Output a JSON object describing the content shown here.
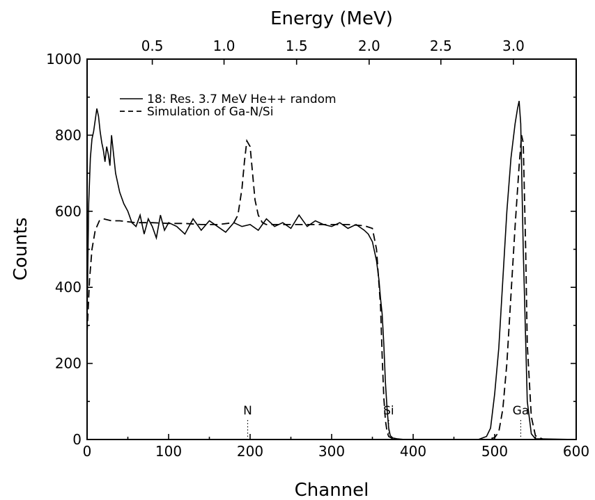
{
  "chart_data": {
    "type": "line",
    "xlabel": "Channel",
    "ylabel": "Counts",
    "x2label": "Energy (MeV)",
    "xlim": [
      0,
      600
    ],
    "ylim": [
      0,
      1000
    ],
    "xticks": [
      0,
      100,
      200,
      300,
      400,
      500,
      600
    ],
    "yticks": [
      0,
      200,
      400,
      600,
      800,
      1000
    ],
    "x2ticks": [
      {
        "label": "0.5",
        "channel": 80
      },
      {
        "label": "1.0",
        "channel": 168
      },
      {
        "label": "1.5",
        "channel": 257
      },
      {
        "label": "2.0",
        "channel": 346
      },
      {
        "label": "2.5",
        "channel": 434
      },
      {
        "label": "3.0",
        "channel": 523
      }
    ],
    "legend_position": "top-left",
    "series": [
      {
        "name": "18: Res. 3.7 MeV He++ random",
        "style": "solid",
        "x": [
          0,
          2,
          4,
          6,
          8,
          10,
          12,
          14,
          16,
          18,
          20,
          22,
          24,
          26,
          28,
          30,
          35,
          40,
          45,
          50,
          55,
          60,
          65,
          70,
          75,
          80,
          85,
          90,
          95,
          100,
          110,
          120,
          130,
          140,
          150,
          160,
          170,
          180,
          190,
          200,
          210,
          220,
          230,
          240,
          250,
          260,
          270,
          280,
          290,
          300,
          310,
          320,
          330,
          340,
          345,
          350,
          355,
          358,
          360,
          362,
          364,
          366,
          368,
          370,
          372,
          375,
          380,
          385,
          390,
          400,
          450,
          480,
          490,
          495,
          500,
          505,
          510,
          515,
          520,
          525,
          528,
          530,
          532,
          535,
          540,
          545,
          550,
          600
        ],
        "y": [
          320,
          620,
          740,
          790,
          810,
          840,
          870,
          850,
          810,
          780,
          760,
          730,
          770,
          750,
          720,
          800,
          700,
          650,
          620,
          600,
          570,
          560,
          590,
          540,
          580,
          560,
          530,
          590,
          550,
          570,
          560,
          540,
          580,
          550,
          575,
          560,
          545,
          570,
          560,
          565,
          550,
          580,
          560,
          570,
          555,
          590,
          560,
          575,
          565,
          560,
          570,
          555,
          565,
          550,
          540,
          520,
          470,
          420,
          370,
          330,
          250,
          150,
          80,
          30,
          10,
          4,
          2,
          1,
          0,
          0,
          0,
          0,
          8,
          30,
          120,
          240,
          420,
          600,
          740,
          830,
          870,
          890,
          830,
          500,
          100,
          15,
          2,
          0
        ]
      },
      {
        "name": "Simulation of Ga-N/Si",
        "style": "dashed",
        "x": [
          0,
          3,
          6,
          10,
          15,
          20,
          30,
          40,
          60,
          80,
          100,
          120,
          140,
          160,
          180,
          185,
          190,
          193,
          196,
          200,
          203,
          206,
          210,
          215,
          220,
          240,
          260,
          280,
          300,
          320,
          340,
          350,
          355,
          360,
          362,
          364,
          366,
          368,
          370,
          375,
          380,
          400,
          460,
          490,
          500,
          505,
          510,
          515,
          520,
          525,
          530,
          533,
          535,
          538,
          540,
          545,
          550,
          560,
          600
        ],
        "y": [
          280,
          420,
          500,
          550,
          575,
          580,
          575,
          575,
          570,
          570,
          568,
          568,
          565,
          565,
          570,
          590,
          660,
          730,
          785,
          770,
          700,
          630,
          590,
          570,
          565,
          565,
          565,
          565,
          565,
          565,
          562,
          555,
          500,
          350,
          220,
          110,
          50,
          20,
          8,
          2,
          0,
          0,
          0,
          0,
          5,
          20,
          80,
          200,
          380,
          560,
          720,
          800,
          780,
          500,
          250,
          60,
          10,
          0,
          0
        ]
      }
    ],
    "annotations": [
      {
        "label": "N",
        "channel": 197
      },
      {
        "label": "Si",
        "channel": 370
      },
      {
        "label": "Ga",
        "channel": 532
      }
    ]
  }
}
